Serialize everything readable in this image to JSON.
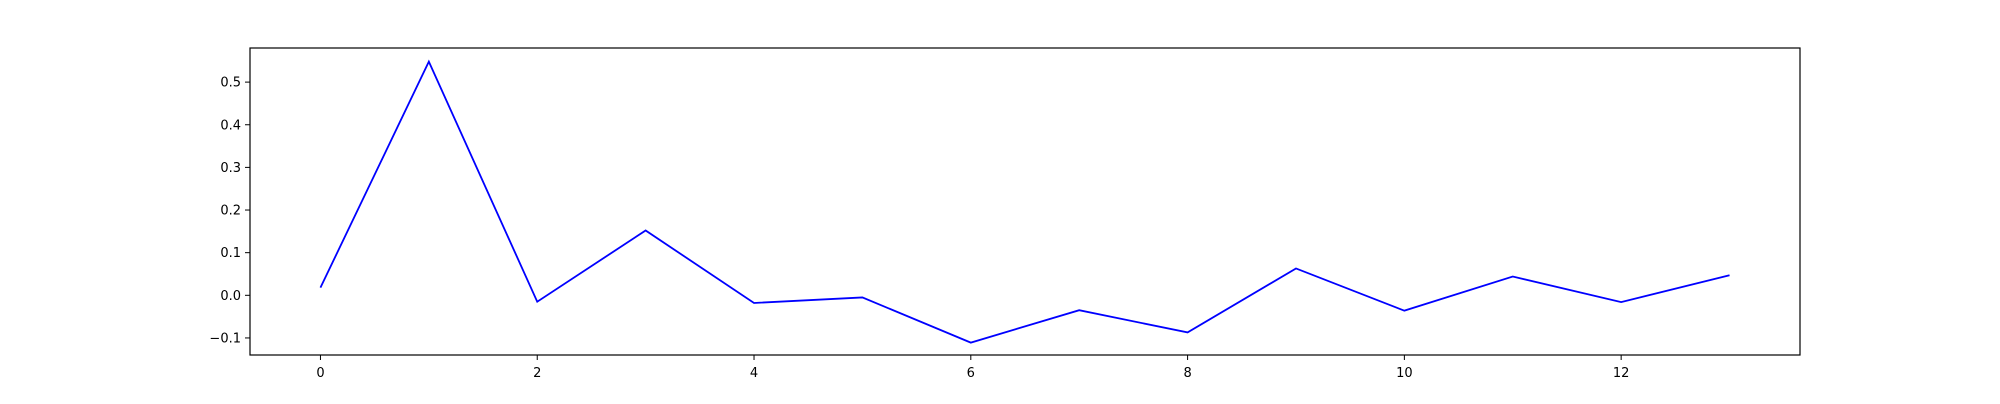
{
  "chart_data": {
    "type": "line",
    "title": "",
    "xlabel": "",
    "ylabel": "",
    "x": [
      0,
      1,
      2,
      3,
      4,
      5,
      6,
      7,
      8,
      9,
      10,
      11,
      12,
      13
    ],
    "series": [
      {
        "color": "#0000ff",
        "values": [
          0.018,
          0.548,
          -0.015,
          0.152,
          -0.018,
          -0.005,
          -0.111,
          -0.035,
          -0.087,
          0.063,
          -0.036,
          0.044,
          -0.016,
          0.047
        ]
      }
    ],
    "xlim": [
      -0.65,
      13.65
    ],
    "ylim": [
      -0.14,
      0.58
    ],
    "xticks": [
      0,
      2,
      4,
      6,
      8,
      10,
      12
    ],
    "yticks": [
      -0.1,
      0.0,
      0.1,
      0.2,
      0.3,
      0.4,
      0.5
    ],
    "xtick_labels": [
      "0",
      "2",
      "4",
      "6",
      "8",
      "10",
      "12"
    ],
    "ytick_labels": [
      "−0.1",
      "0.0",
      "0.1",
      "0.2",
      "0.3",
      "0.4",
      "0.5"
    ],
    "grid": false,
    "legend": "none"
  }
}
